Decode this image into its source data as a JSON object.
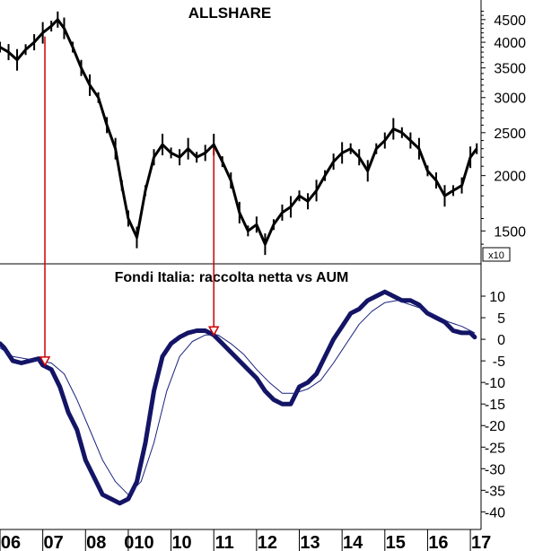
{
  "chart_data": [
    {
      "type": "line",
      "title": "ALLSHARE",
      "scale": "log",
      "ylim": [
        1300,
        4800
      ],
      "yticks": [
        1500,
        2000,
        2500,
        3000,
        3500,
        4000,
        4500
      ],
      "ytick_labels": [
        "1500",
        "2000",
        "2500",
        "3000",
        "3500",
        "4000",
        "4500"
      ],
      "multiplier_label": "x10",
      "series": [
        {
          "color": "#000000",
          "x": [
            2006.0,
            2006.2,
            2006.4,
            2006.6,
            2006.8,
            2007.0,
            2007.2,
            2007.35,
            2007.5,
            2007.7,
            2007.9,
            2008.1,
            2008.3,
            2008.5,
            2008.7,
            2008.85,
            2009.0,
            2009.2,
            2009.4,
            2009.6,
            2009.8,
            2010.0,
            2010.2,
            2010.4,
            2010.6,
            2010.8,
            2011.0,
            2011.2,
            2011.4,
            2011.6,
            2011.8,
            2012.0,
            2012.2,
            2012.4,
            2012.6,
            2012.8,
            2013.0,
            2013.2,
            2013.4,
            2013.6,
            2013.8,
            2014.0,
            2014.2,
            2014.4,
            2014.6,
            2014.8,
            2015.0,
            2015.2,
            2015.4,
            2015.6,
            2015.8,
            2016.0,
            2016.2,
            2016.4,
            2016.6,
            2016.8,
            2017.0,
            2017.15
          ],
          "values": [
            3900,
            3800,
            3650,
            3850,
            4000,
            4200,
            4350,
            4500,
            4300,
            3900,
            3500,
            3200,
            3000,
            2600,
            2300,
            1900,
            1600,
            1450,
            1850,
            2200,
            2350,
            2250,
            2200,
            2300,
            2200,
            2250,
            2350,
            2150,
            1950,
            1650,
            1500,
            1550,
            1400,
            1550,
            1650,
            1700,
            1800,
            1750,
            1850,
            2000,
            2150,
            2250,
            2300,
            2200,
            2050,
            2300,
            2400,
            2550,
            2500,
            2400,
            2300,
            2050,
            1950,
            1800,
            1850,
            1900,
            2200,
            2300
          ]
        }
      ]
    },
    {
      "type": "line",
      "title": "Fondi Italia: raccolta netta vs AUM",
      "ylim": [
        -42,
        12.5
      ],
      "yticks": [
        10,
        5,
        0,
        -5,
        -10,
        -15,
        -20,
        -25,
        -30,
        -35,
        -40
      ],
      "ytick_labels": [
        "10",
        "5",
        "0",
        "-5",
        "-10",
        "-15",
        "-20",
        "-25",
        "-30",
        "-35",
        "-40"
      ],
      "x_labels": [
        "06",
        "07",
        "08",
        "010",
        "10",
        "11",
        "12",
        "13",
        "14",
        "15",
        "16",
        "17"
      ],
      "series": [
        {
          "color": "#141466",
          "x": [
            2006.0,
            2006.1,
            2006.3,
            2006.5,
            2006.7,
            2006.9,
            2007.0,
            2007.2,
            2007.4,
            2007.6,
            2007.8,
            2008.0,
            2008.2,
            2008.4,
            2008.6,
            2008.8,
            2009.0,
            2009.2,
            2009.4,
            2009.6,
            2009.8,
            2010.0,
            2010.2,
            2010.4,
            2010.6,
            2010.8,
            2011.0,
            2011.2,
            2011.4,
            2011.6,
            2011.8,
            2012.0,
            2012.2,
            2012.4,
            2012.6,
            2012.8,
            2013.0,
            2013.2,
            2013.4,
            2013.6,
            2013.8,
            2014.0,
            2014.2,
            2014.4,
            2014.6,
            2014.8,
            2015.0,
            2015.2,
            2015.4,
            2015.6,
            2015.8,
            2016.0,
            2016.2,
            2016.4,
            2016.6,
            2016.8,
            2017.0,
            2017.1
          ],
          "values": [
            -1,
            -2,
            -5,
            -5.5,
            -5,
            -4.5,
            -6,
            -7,
            -11,
            -17,
            -21,
            -28,
            -32,
            -36,
            -37,
            -38,
            -37,
            -33,
            -24,
            -12,
            -4,
            -1,
            0.5,
            1.5,
            2,
            2,
            1,
            -1,
            -3,
            -5,
            -7,
            -9,
            -12,
            -14,
            -15,
            -15,
            -11,
            -10,
            -8,
            -4,
            0,
            3,
            6,
            7,
            9,
            10,
            11,
            10,
            9,
            9,
            8,
            6,
            5,
            4,
            2,
            1.5,
            1.5,
            0.5
          ]
        },
        {
          "color": "#1a237e",
          "x": [
            2006.0,
            2006.3,
            2006.6,
            2006.9,
            2007.2,
            2007.5,
            2007.8,
            2008.1,
            2008.4,
            2008.7,
            2009.0,
            2009.3,
            2009.6,
            2009.9,
            2010.2,
            2010.5,
            2010.8,
            2011.1,
            2011.4,
            2011.7,
            2012.0,
            2012.3,
            2012.6,
            2012.9,
            2013.2,
            2013.5,
            2013.8,
            2014.1,
            2014.4,
            2014.7,
            2015.0,
            2015.3,
            2015.6,
            2015.9,
            2016.2,
            2016.5,
            2016.8,
            2017.1
          ],
          "values": [
            -2,
            -4,
            -4.5,
            -5,
            -5.5,
            -8,
            -14,
            -21,
            -28,
            -33,
            -36,
            -33,
            -24,
            -12,
            -4,
            -0.5,
            1,
            1,
            -1,
            -3.5,
            -7,
            -10,
            -12.5,
            -12.5,
            -11.5,
            -9.5,
            -5.5,
            -1,
            3.5,
            6.5,
            8.5,
            9,
            8,
            7,
            5.5,
            4,
            3,
            1.5
          ]
        }
      ]
    }
  ],
  "annotations": {
    "color": "#cc0000",
    "arrows": [
      {
        "x": 2007.05,
        "from": "top",
        "to": "bottom"
      },
      {
        "x": 2011.0,
        "from": "top",
        "to": "bottom"
      }
    ]
  }
}
